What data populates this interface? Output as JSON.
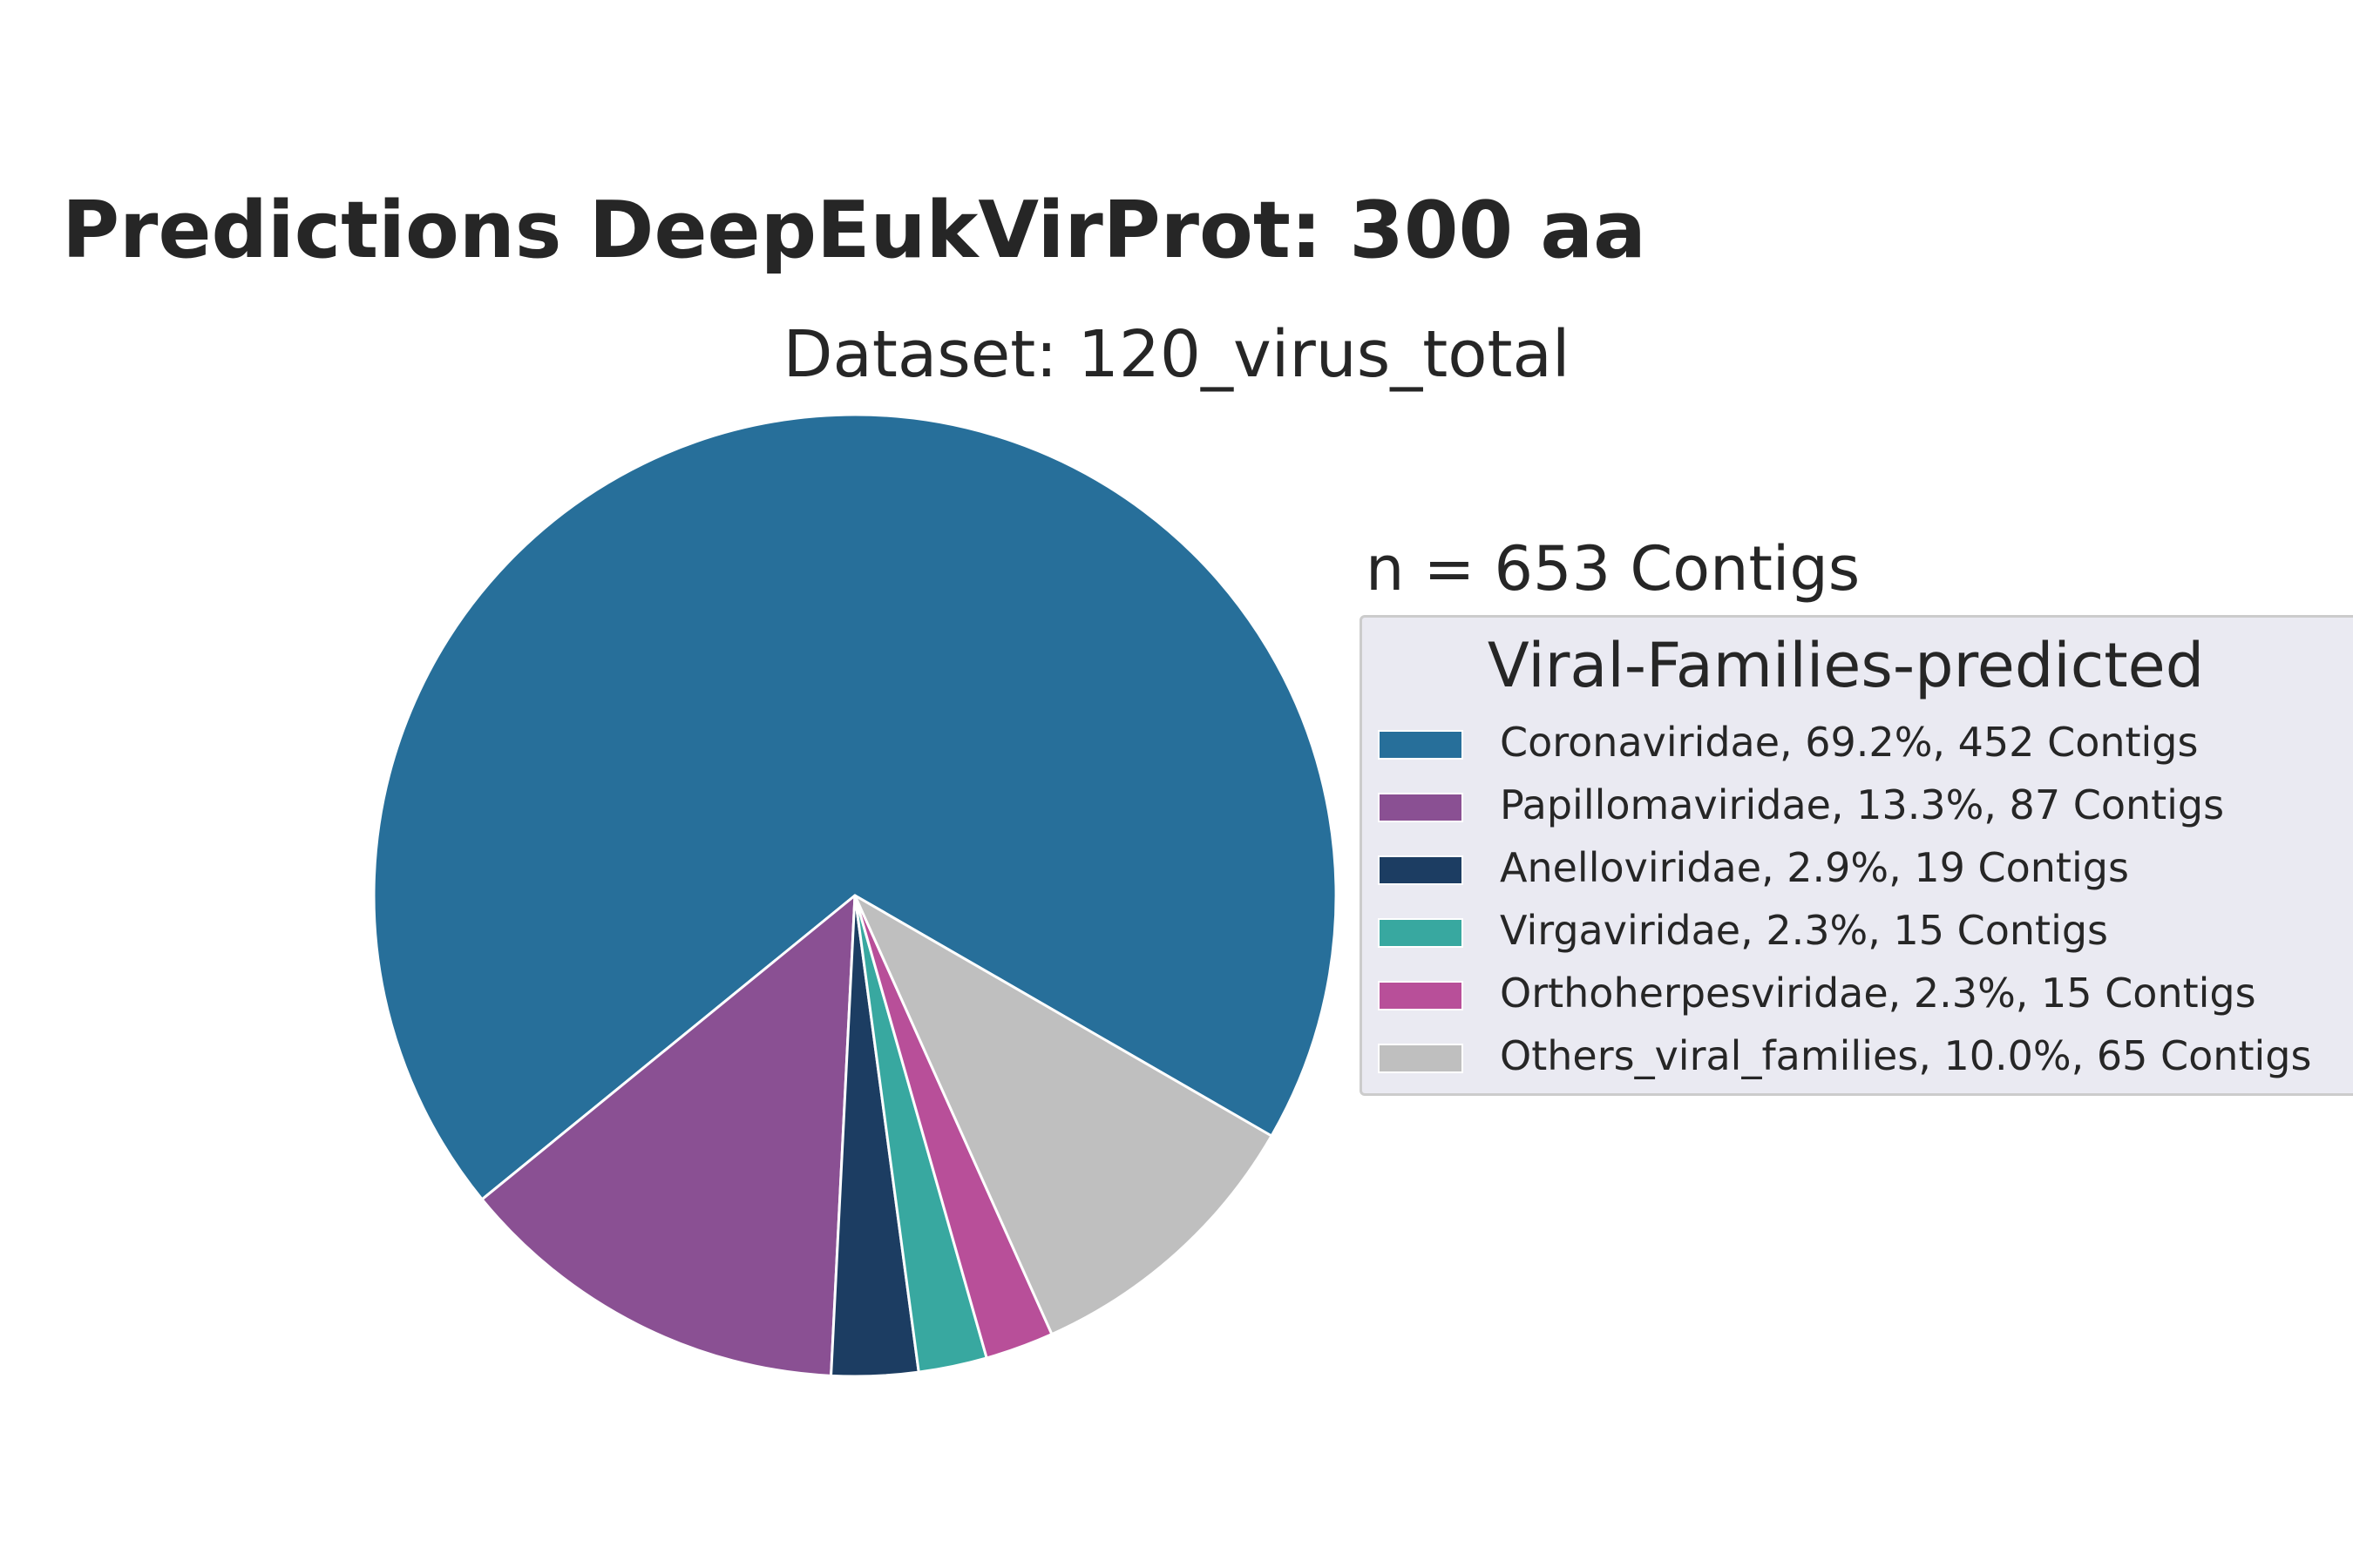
{
  "chart_data": {
    "type": "pie",
    "title": "Predictions DeepEukVirProt: 300 aa",
    "subtitle": "Dataset: 120_virus_total",
    "total_label": "n = 653 Contigs",
    "legend_title": "Viral-Families-predicted",
    "legend_placement": "right",
    "start_angle_deg": -30,
    "direction": "counterclockwise",
    "slices": [
      {
        "name": "Coronaviridae",
        "value": 452,
        "percent": 69.2,
        "color": "#276f9a",
        "label": "Coronaviridae, 69.2%, 452 Contigs"
      },
      {
        "name": "Papillomaviridae",
        "value": 87,
        "percent": 13.3,
        "color": "#8a5093",
        "label": "Papillomaviridae, 13.3%, 87 Contigs"
      },
      {
        "name": "Anelloviridae",
        "value": 19,
        "percent": 2.9,
        "color": "#1c3d62",
        "label": "Anelloviridae, 2.9%, 19 Contigs"
      },
      {
        "name": "Virgaviridae",
        "value": 15,
        "percent": 2.3,
        "color": "#38a8a0",
        "label": "Virgaviridae, 2.3%, 15 Contigs"
      },
      {
        "name": "Orthoherpesviridae",
        "value": 15,
        "percent": 2.3,
        "color": "#b84f99",
        "label": "Orthoherpesviridae, 2.3%, 15 Contigs"
      },
      {
        "name": "Others_viral_families",
        "value": 65,
        "percent": 10.0,
        "color": "#bfbfbf",
        "label": "Others_viral_families, 10.0%, 65 Contigs"
      }
    ]
  }
}
